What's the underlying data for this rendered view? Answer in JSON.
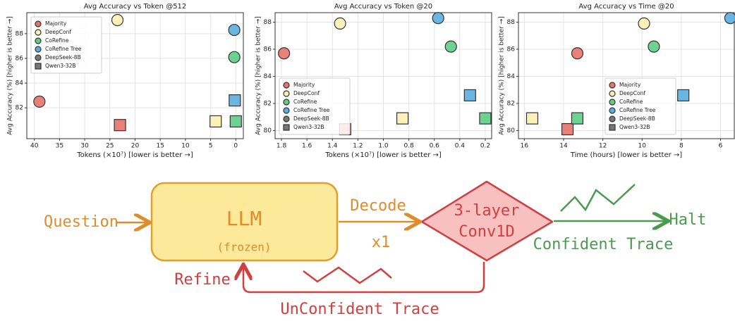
{
  "chart_data": [
    {
      "type": "scatter",
      "title": "Avg Accuracy vs Token @512",
      "x_label": "Tokens (×10⁷) [lower is better →]",
      "y_label": "Avg Accuracy (%) [higher is better →]",
      "xlim": [
        41.5,
        -1.5
      ],
      "xticks": [
        40,
        35,
        30,
        25,
        20,
        15,
        10,
        5,
        0
      ],
      "ylim": [
        79.5,
        89.7
      ],
      "yticks": [
        82,
        84,
        86,
        88
      ],
      "grid": true,
      "legend": "upper left",
      "markers": [
        {
          "name": "DeepSeek-8B",
          "shape": "circle"
        },
        {
          "name": "Qwen3-32B",
          "shape": "square"
        }
      ],
      "series": [
        {
          "name": "Majority",
          "color": "#e8736a",
          "x": [
            39,
            23
          ],
          "values": [
            82.5,
            80.6
          ]
        },
        {
          "name": "DeepConf",
          "color": "#fdefb2",
          "x": [
            23.5,
            4
          ],
          "values": [
            89.1,
            80.9
          ]
        },
        {
          "name": "CoRefine",
          "color": "#5ccf84",
          "x": [
            0.3,
            0
          ],
          "values": [
            86.1,
            80.9
          ]
        },
        {
          "name": "CoRefine Tree",
          "color": "#5aaee0",
          "x": [
            0.3,
            0.2
          ],
          "values": [
            88.3,
            82.6
          ]
        }
      ]
    },
    {
      "type": "scatter",
      "title": "Avg Accuracy vs Token @20",
      "x_label": "Tokens (×10⁷) [lower is better →]",
      "y_label": "Avg Accuracy (%) [higher is better →]",
      "xlim": [
        1.85,
        0.15
      ],
      "xticks": [
        1.8,
        1.6,
        1.4,
        1.2,
        {
          "value": 1,
          "label": "1.0"
        },
        0.8,
        0.6,
        0.4,
        0.2
      ],
      "ylim": [
        79.4,
        88.7
      ],
      "yticks": [
        80,
        82,
        84,
        86,
        88
      ],
      "grid": true,
      "legend": "lower left",
      "markers": [
        {
          "name": "DeepSeek-8B",
          "shape": "circle"
        },
        {
          "name": "Qwen3-32B",
          "shape": "square"
        }
      ],
      "series": [
        {
          "name": "Majority",
          "color": "#e8736a",
          "x": [
            1.78,
            1.3
          ],
          "values": [
            85.7,
            80.1
          ]
        },
        {
          "name": "DeepConf",
          "color": "#fdefb2",
          "x": [
            1.34,
            0.85
          ],
          "values": [
            87.9,
            80.9
          ]
        },
        {
          "name": "CoRefine",
          "color": "#5ccf84",
          "x": [
            0.47,
            0.2
          ],
          "values": [
            86.2,
            80.9
          ]
        },
        {
          "name": "CoRefine Tree",
          "color": "#5aaee0",
          "x": [
            0.57,
            0.32
          ],
          "values": [
            88.3,
            82.6
          ]
        }
      ]
    },
    {
      "type": "scatter",
      "title": "Avg Accuracy vs Time @20",
      "x_label": "Time (hours) [lower is better →]",
      "y_label": "Avg Accuracy (%) [higher is better →]",
      "xlim": [
        16.3,
        5.3
      ],
      "xticks": [
        16,
        14,
        12,
        10,
        8,
        6
      ],
      "ylim": [
        79.4,
        88.7
      ],
      "yticks": [
        80,
        82,
        84,
        86,
        88
      ],
      "grid": true,
      "legend": "lower center",
      "markers": [
        {
          "name": "DeepSeek-8B",
          "shape": "circle"
        },
        {
          "name": "Qwen3-32B",
          "shape": "square"
        }
      ],
      "series": [
        {
          "name": "Majority",
          "color": "#e8736a",
          "x": [
            13.3,
            13.8
          ],
          "values": [
            85.7,
            80.1
          ]
        },
        {
          "name": "DeepConf",
          "color": "#fdefb2",
          "x": [
            9.9,
            15.6
          ],
          "values": [
            87.9,
            80.9
          ]
        },
        {
          "name": "CoRefine",
          "color": "#5ccf84",
          "x": [
            9.4,
            13.3
          ],
          "values": [
            86.2,
            80.9
          ]
        },
        {
          "name": "CoRefine Tree",
          "color": "#5aaee0",
          "x": [
            5.5,
            7.9
          ],
          "values": [
            88.3,
            82.6
          ]
        }
      ]
    }
  ],
  "diagram": {
    "input": "Question",
    "llm": "LLM",
    "llm_note": "(frozen)",
    "decode": "Decode",
    "passes": "x1",
    "classifier_line1": "3-layer",
    "classifier_line2": "Conv1D",
    "halt": "Halt",
    "confident": "Confident Trace",
    "refine": "Refine",
    "unconfident": "UnConfident Trace"
  }
}
